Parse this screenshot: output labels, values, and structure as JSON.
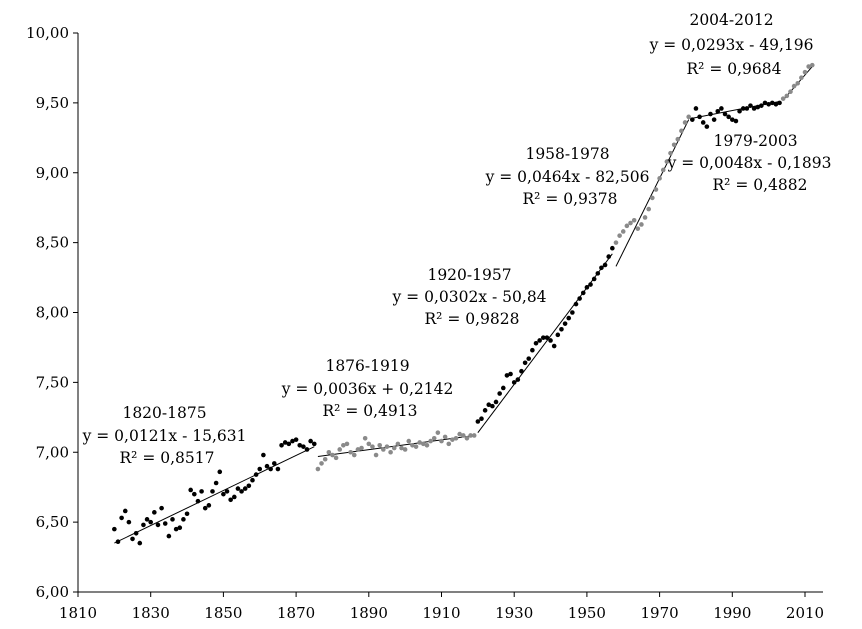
{
  "chart_data": {
    "type": "scatter",
    "title": "",
    "xlabel": "",
    "ylabel": "",
    "xlim": [
      1810,
      2020
    ],
    "ylim": [
      6.0,
      10.0
    ],
    "x_ticks": [
      1810,
      1830,
      1850,
      1870,
      1890,
      1910,
      1930,
      1950,
      1970,
      1990,
      2010
    ],
    "x_tick_labels": [
      "1810",
      "1830",
      "1850",
      "1870",
      "1890",
      "1910",
      "1930",
      "1950",
      "1970",
      "1990",
      "2010"
    ],
    "y_ticks": [
      6.0,
      6.5,
      7.0,
      7.5,
      8.0,
      8.5,
      9.0,
      9.5,
      10.0
    ],
    "y_tick_labels": [
      "6,00",
      "6,50",
      "7,00",
      "7,50",
      "8,00",
      "8,50",
      "9,00",
      "9,50",
      "10,00"
    ],
    "grid": false,
    "colors": {
      "dark": "#000000",
      "light": "#8a8a8a"
    },
    "series": [
      {
        "color": "dark",
        "x_start": 1820,
        "values": [
          6.45,
          6.36,
          6.53,
          6.58,
          6.5,
          6.38,
          6.42,
          6.35,
          6.48,
          6.52,
          6.5,
          6.57,
          6.48,
          6.6,
          6.49,
          6.4,
          6.52,
          6.45,
          6.46,
          6.52,
          6.56,
          6.73,
          6.7,
          6.65,
          6.72,
          6.6,
          6.62,
          6.72,
          6.78,
          6.86,
          6.7,
          6.72,
          6.66,
          6.68,
          6.74,
          6.72,
          6.74,
          6.76,
          6.8,
          6.84,
          6.88,
          6.98,
          6.9,
          6.88,
          6.92,
          6.88,
          7.05,
          7.07,
          7.06,
          7.08,
          7.09,
          7.05,
          7.04,
          7.02,
          7.08,
          7.06
        ]
      },
      {
        "color": "light",
        "x_start": 1876,
        "values": [
          6.88,
          6.92,
          6.95,
          7.0,
          6.98,
          6.96,
          7.02,
          7.05,
          7.06,
          7.0,
          6.98,
          7.02,
          7.03,
          7.1,
          7.06,
          7.04,
          6.98,
          7.05,
          7.02,
          7.04,
          7.0,
          7.03,
          7.06,
          7.03,
          7.02,
          7.08,
          7.05,
          7.04,
          7.07,
          7.06,
          7.05,
          7.08,
          7.1,
          7.14,
          7.08,
          7.11,
          7.06,
          7.09,
          7.1,
          7.13,
          7.12,
          7.1,
          7.12,
          7.12
        ]
      },
      {
        "color": "dark",
        "x_start": 1920,
        "values": [
          7.22,
          7.24,
          7.3,
          7.34,
          7.33,
          7.36,
          7.42,
          7.46,
          7.55,
          7.56,
          7.5,
          7.52,
          7.58,
          7.64,
          7.67,
          7.73,
          7.78,
          7.8,
          7.82,
          7.82,
          7.8,
          7.76,
          7.84,
          7.88,
          7.92,
          7.96,
          8.0,
          8.06,
          8.1,
          8.14,
          8.18,
          8.2,
          8.24,
          8.28,
          8.32,
          8.34,
          8.4,
          8.46
        ]
      },
      {
        "color": "light",
        "x_start": 1958,
        "values": [
          8.5,
          8.55,
          8.58,
          8.62,
          8.64,
          8.66,
          8.6,
          8.63,
          8.68,
          8.74,
          8.82,
          8.88,
          8.96,
          9.02,
          9.08,
          9.14,
          9.2,
          9.24,
          9.3,
          9.36,
          9.4
        ]
      },
      {
        "color": "dark",
        "x_start": 1979,
        "values": [
          9.38,
          9.46,
          9.4,
          9.36,
          9.33,
          9.42,
          9.38,
          9.44,
          9.46,
          9.42,
          9.4,
          9.38,
          9.37,
          9.44,
          9.46,
          9.46,
          9.48,
          9.46,
          9.47,
          9.48,
          9.5,
          9.49,
          9.5,
          9.49,
          9.5
        ]
      },
      {
        "color": "light",
        "x_start": 2004,
        "values": [
          9.53,
          9.55,
          9.58,
          9.62,
          9.64,
          9.68,
          9.72,
          9.76,
          9.77
        ]
      }
    ],
    "trendlines": [
      {
        "x": [
          1820,
          1875
        ],
        "y": [
          6.35,
          7.04
        ]
      },
      {
        "x": [
          1876,
          1919
        ],
        "y": [
          6.97,
          7.12
        ]
      },
      {
        "x": [
          1920,
          1957
        ],
        "y": [
          7.14,
          8.42
        ]
      },
      {
        "x": [
          1958,
          1978
        ],
        "y": [
          8.33,
          9.38
        ]
      },
      {
        "x": [
          1979,
          2003
        ],
        "y": [
          9.39,
          9.51
        ]
      },
      {
        "x": [
          2004,
          2012
        ],
        "y": [
          9.52,
          9.76
        ]
      }
    ],
    "annotations": [
      {
        "lines": [
          "1820-1875",
          "y = 0,0121x - 15,631",
          "R² = 0,8517"
        ]
      },
      {
        "lines": [
          "1876-1919",
          "y = 0,0036x + 0,2142",
          "R² = 0,4913"
        ]
      },
      {
        "lines": [
          "1920-1957",
          "y = 0,0302x - 50,84",
          "R² = 0,9828"
        ]
      },
      {
        "lines": [
          "1958-1978",
          "y = 0,0464x - 82,506",
          "R² = 0,9378"
        ]
      },
      {
        "lines": [
          "1979-2003",
          "y = 0,0048x - 0,1893",
          "R² = 0,4882"
        ]
      },
      {
        "lines": [
          "2004-2012",
          "y = 0,0293x - 49,196",
          "R² = 0,9684"
        ]
      }
    ]
  }
}
